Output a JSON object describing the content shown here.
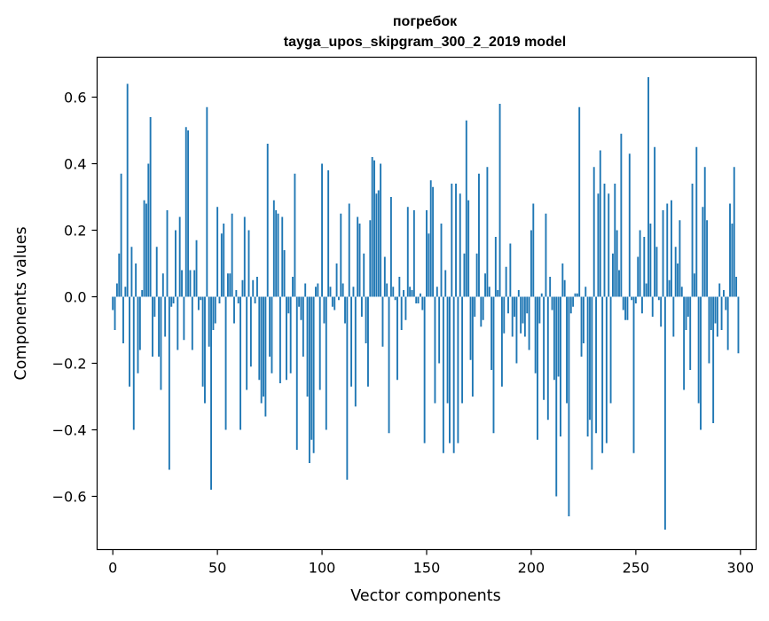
{
  "chart_data": {
    "type": "bar",
    "title": "погребок",
    "subtitle": "tayga_upos_skipgram_300_2_2019 model",
    "xlabel": "Vector components",
    "ylabel": "Components values",
    "xlim": [
      -7.5,
      307.5
    ],
    "ylim": [
      -0.76,
      0.72
    ],
    "xticks": [
      0,
      50,
      100,
      150,
      200,
      250,
      300
    ],
    "xtick_labels": [
      "0",
      "50",
      "100",
      "150",
      "200",
      "250",
      "300"
    ],
    "yticks": [
      -0.6,
      -0.4,
      -0.2,
      0.0,
      0.2,
      0.4,
      0.6
    ],
    "ytick_labels": [
      "−0.6",
      "−0.4",
      "−0.2",
      "0.0",
      "0.2",
      "0.4",
      "0.6"
    ],
    "bar_color": "#1f77b4",
    "grid": false,
    "values": [
      -0.04,
      -0.1,
      0.04,
      0.13,
      0.37,
      -0.14,
      0.03,
      0.64,
      -0.27,
      0.15,
      -0.4,
      0.1,
      -0.23,
      -0.16,
      0.02,
      0.29,
      0.28,
      0.4,
      0.54,
      -0.18,
      -0.06,
      0.15,
      -0.18,
      -0.28,
      0.07,
      -0.12,
      0.26,
      -0.52,
      -0.03,
      -0.02,
      0.2,
      -0.16,
      0.24,
      0.08,
      -0.13,
      0.51,
      0.5,
      0.08,
      -0.16,
      0.08,
      0.17,
      -0.04,
      -0.01,
      -0.27,
      -0.32,
      0.57,
      -0.15,
      -0.58,
      -0.1,
      -0.08,
      0.27,
      -0.02,
      0.19,
      0.22,
      -0.4,
      0.07,
      0.07,
      0.25,
      -0.08,
      0.02,
      -0.02,
      -0.4,
      0.05,
      0.24,
      -0.28,
      0.2,
      -0.21,
      0.05,
      -0.02,
      0.06,
      -0.25,
      -0.32,
      -0.3,
      -0.36,
      0.46,
      -0.18,
      -0.23,
      0.29,
      0.26,
      0.25,
      -0.26,
      0.24,
      0.14,
      -0.25,
      -0.05,
      -0.23,
      0.06,
      0.37,
      -0.46,
      -0.03,
      -0.07,
      -0.18,
      0.04,
      -0.3,
      -0.5,
      -0.43,
      -0.47,
      0.03,
      0.04,
      -0.28,
      0.4,
      -0.08,
      -0.4,
      0.38,
      0.03,
      -0.03,
      -0.04,
      0.1,
      -0.01,
      0.25,
      0.04,
      -0.08,
      -0.55,
      0.28,
      -0.27,
      0.03,
      -0.33,
      0.24,
      0.22,
      -0.06,
      0.13,
      -0.14,
      -0.27,
      0.23,
      0.42,
      0.41,
      0.31,
      0.32,
      0.4,
      -0.15,
      0.12,
      0.04,
      -0.41,
      0.3,
      0.03,
      -0.01,
      -0.25,
      0.06,
      -0.1,
      0.02,
      -0.07,
      0.27,
      0.03,
      0.02,
      0.26,
      -0.02,
      -0.02,
      0.01,
      -0.04,
      -0.44,
      0.26,
      0.19,
      0.35,
      0.33,
      -0.32,
      0.03,
      -0.2,
      0.22,
      -0.47,
      0.08,
      -0.32,
      -0.44,
      0.34,
      -0.47,
      0.34,
      -0.44,
      0.31,
      -0.32,
      0.13,
      0.53,
      0.29,
      -0.19,
      -0.3,
      -0.06,
      0.13,
      0.37,
      -0.09,
      -0.07,
      0.07,
      0.39,
      0.03,
      -0.22,
      -0.41,
      0.18,
      0.02,
      0.58,
      -0.27,
      -0.11,
      0.09,
      -0.05,
      0.16,
      -0.12,
      -0.06,
      -0.2,
      0.02,
      -0.11,
      -0.08,
      -0.12,
      -0.05,
      -0.16,
      0.2,
      0.28,
      -0.23,
      -0.43,
      -0.08,
      0.01,
      -0.31,
      0.25,
      -0.37,
      0.06,
      -0.04,
      -0.25,
      -0.6,
      -0.24,
      -0.42,
      0.1,
      0.05,
      -0.32,
      -0.66,
      -0.05,
      -0.03,
      0.01,
      0.01,
      0.57,
      -0.18,
      -0.14,
      0.03,
      -0.42,
      -0.37,
      -0.52,
      0.39,
      -0.41,
      0.31,
      0.44,
      -0.47,
      0.34,
      -0.44,
      0.31,
      -0.32,
      0.13,
      0.34,
      0.2,
      0.08,
      0.49,
      -0.04,
      -0.07,
      -0.07,
      0.43,
      -0.01,
      -0.47,
      -0.02,
      0.12,
      0.2,
      -0.05,
      0.18,
      0.04,
      0.66,
      0.22,
      -0.06,
      0.45,
      0.15,
      -0.01,
      -0.09,
      0.26,
      -0.7,
      0.28,
      0.05,
      0.29,
      -0.12,
      0.15,
      0.1,
      0.23,
      0.03,
      -0.28,
      -0.1,
      -0.06,
      -0.22,
      0.34,
      0.07,
      0.45,
      -0.32,
      -0.4,
      0.27,
      0.39,
      0.23,
      -0.2,
      -0.1,
      -0.38,
      -0.08,
      -0.12,
      0.04,
      -0.1,
      0.02,
      -0.04,
      -0.16,
      0.28,
      0.22,
      0.39,
      0.06,
      -0.17
    ]
  }
}
